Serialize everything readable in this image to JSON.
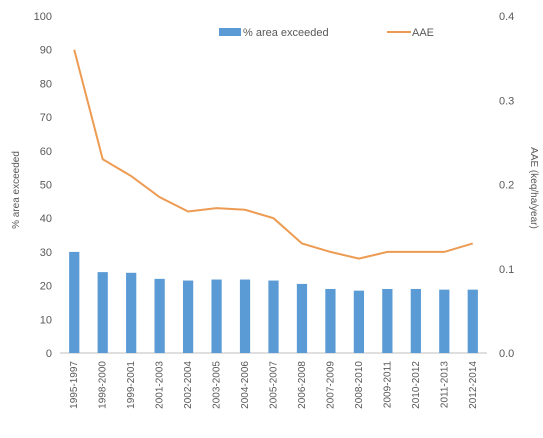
{
  "chart_data": {
    "type": "bar",
    "categories": [
      "1995-1997",
      "1998-2000",
      "1999-2001",
      "2001-2003",
      "2002-2004",
      "2003-2005",
      "2004-2006",
      "2005-2007",
      "2006-2008",
      "2007-2009",
      "2008-2010",
      "2009-2011",
      "2010-2012",
      "2011-2013",
      "2012-2014"
    ],
    "series": [
      {
        "name": "% area exceeded",
        "type": "bar",
        "axis": "left",
        "color": "#5b9bd5",
        "values": [
          30,
          24,
          23.8,
          22,
          21.5,
          21.8,
          21.8,
          21.5,
          20.5,
          19,
          18.5,
          19,
          19,
          18.8,
          18.8
        ]
      },
      {
        "name": "AAE",
        "type": "line",
        "axis": "right",
        "color": "#ed9b52",
        "values": [
          0.36,
          0.23,
          0.21,
          0.185,
          0.168,
          0.172,
          0.17,
          0.16,
          0.13,
          0.12,
          0.112,
          0.12,
          0.12,
          0.12,
          0.13
        ]
      }
    ],
    "ylabel": "% area exceeded",
    "y2label": "AAE (keq/ha/year)",
    "ylim": [
      0,
      100
    ],
    "y2lim": [
      0,
      0.4
    ],
    "yticks": [
      "0",
      "10",
      "20",
      "30",
      "40",
      "50",
      "60",
      "70",
      "80",
      "90",
      "100"
    ],
    "y2ticks": [
      "0.0",
      "0.1",
      "0.2",
      "0.3",
      "0.4"
    ],
    "grid": false,
    "legend_position": "top"
  }
}
